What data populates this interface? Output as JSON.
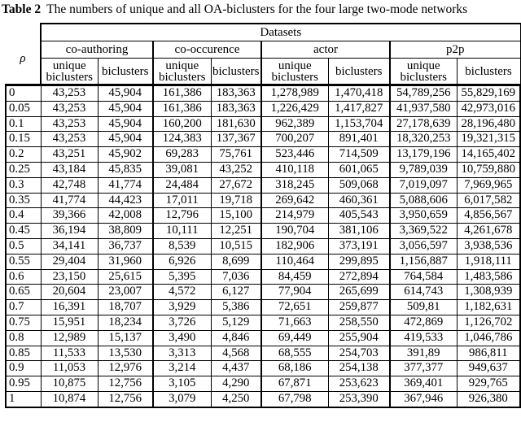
{
  "caption": {
    "label": "Table 2",
    "text": "The numbers of unique and all OA-biclusters for the four large two-mode networks"
  },
  "table": {
    "top_header": "Datasets",
    "rho_header": "ρ",
    "groups": [
      "co-authoring",
      "co-occurence",
      "actor",
      "p2p"
    ],
    "col_headers": {
      "unique": "unique biclusters",
      "all": "biclusters"
    },
    "rows": [
      {
        "rho": "0",
        "cells": [
          "43,253",
          "45,904",
          "161,386",
          "183,363",
          "1,278,989",
          "1,470,418",
          "54,789,256",
          "55,829,169"
        ]
      },
      {
        "rho": "0.05",
        "cells": [
          "43,253",
          "45,904",
          "161,386",
          "183,363",
          "1,226,429",
          "1,417,827",
          "41,937,580",
          "42,973,016"
        ]
      },
      {
        "rho": "0.1",
        "cells": [
          "43,253",
          "45,904",
          "160,200",
          "181,630",
          "962,389",
          "1,153,704",
          "27,178,639",
          "28,196,480"
        ]
      },
      {
        "rho": "0.15",
        "cells": [
          "43,253",
          "45,904",
          "124,383",
          "137,367",
          "700,207",
          "891,401",
          "18,320,253",
          "19,321,315"
        ]
      },
      {
        "rho": "0.2",
        "cells": [
          "43,251",
          "45,902",
          "69,283",
          "75,761",
          "523,446",
          "714,509",
          "13,179,196",
          "14,165,402"
        ]
      },
      {
        "rho": "0.25",
        "cells": [
          "43,184",
          "45,835",
          "39,081",
          "43,252",
          "410,118",
          "601,065",
          "9,789,039",
          "10,759,880"
        ]
      },
      {
        "rho": "0.3",
        "cells": [
          "42,748",
          "41,774",
          "24,484",
          "27,672",
          "318,245",
          "509,068",
          "7,019,097",
          "7,969,965"
        ]
      },
      {
        "rho": "0.35",
        "cells": [
          "41,774",
          "44,423",
          "17,011",
          "19,718",
          "269,642",
          "460,361",
          "5,088,606",
          "6,017,582"
        ]
      },
      {
        "rho": "0.4",
        "cells": [
          "39,366",
          "42,008",
          "12,796",
          "15,100",
          "214,979",
          "405,543",
          "3,950,659",
          "4,856,567"
        ]
      },
      {
        "rho": "0.45",
        "cells": [
          "36,194",
          "38,809",
          "10,111",
          "12,251",
          "190,704",
          "381,106",
          "3,369,522",
          "4,261,678"
        ]
      },
      {
        "rho": "0.5",
        "cells": [
          "34,141",
          "36,737",
          "8,539",
          "10,515",
          "182,906",
          "373,191",
          "3,056,597",
          "3,938,536"
        ]
      },
      {
        "rho": "0.55",
        "cells": [
          "29,404",
          "31,960",
          "6,926",
          "8,699",
          "110,464",
          "299,895",
          "1,156,887",
          "1,918,111"
        ]
      },
      {
        "rho": "0.6",
        "cells": [
          "23,150",
          "25,615",
          "5,395",
          "7,036",
          "84,459",
          "272,894",
          "764,584",
          "1,483,586"
        ]
      },
      {
        "rho": "0.65",
        "cells": [
          "20,604",
          "23,007",
          "4,572",
          "6,127",
          "77,904",
          "265,699",
          "614,743",
          "1,308,939"
        ]
      },
      {
        "rho": "0.7",
        "cells": [
          "16,391",
          "18,707",
          "3,929",
          "5,386",
          "72,651",
          "259,877",
          "509,81",
          "1,182,631"
        ]
      },
      {
        "rho": "0.75",
        "cells": [
          "15,951",
          "18,234",
          "3,726",
          "5,129",
          "71,663",
          "258,550",
          "472,869",
          "1,126,702"
        ]
      },
      {
        "rho": "0.8",
        "cells": [
          "12,989",
          "15,137",
          "3,490",
          "4,846",
          "69,449",
          "255,904",
          "419,533",
          "1,046,786"
        ]
      },
      {
        "rho": "0.85",
        "cells": [
          "11,533",
          "13,530",
          "3,313",
          "4,568",
          "68,555",
          "254,703",
          "391,89",
          "986,811"
        ]
      },
      {
        "rho": "0.9",
        "cells": [
          "11,053",
          "12,976",
          "3,214",
          "4,437",
          "68,186",
          "254,138",
          "377,377",
          "949,637"
        ]
      },
      {
        "rho": "0.95",
        "cells": [
          "10,875",
          "12,756",
          "3,105",
          "4,290",
          "67,871",
          "253,623",
          "369,401",
          "929,765"
        ]
      },
      {
        "rho": "1",
        "cells": [
          "10,874",
          "12,756",
          "3,079",
          "4,250",
          "67,798",
          "253,390",
          "367,946",
          "926,380"
        ]
      }
    ]
  },
  "colors": {
    "text": "#000000",
    "background": "#ffffff",
    "border": "#000000"
  }
}
